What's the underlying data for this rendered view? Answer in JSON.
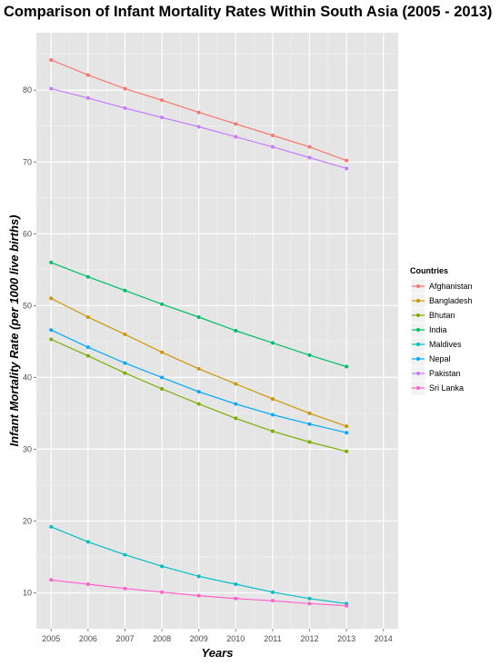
{
  "chart_data": {
    "type": "line",
    "title": "Comparison of Infant Mortality Rates Within South Asia (2005 - 2013)",
    "xlabel": "Years",
    "ylabel": "Infant Mortality Rate (per 1000 live births)",
    "x": [
      2005,
      2006,
      2007,
      2008,
      2009,
      2010,
      2011,
      2012,
      2013
    ],
    "x_ticks": [
      "2005",
      "2006",
      "2007",
      "2008",
      "2009",
      "2010",
      "2011",
      "2012",
      "2013",
      "2014"
    ],
    "y_ticks": [
      "10",
      "20",
      "30",
      "40",
      "50",
      "60",
      "70",
      "80"
    ],
    "xlim": [
      2004.6,
      2014.4
    ],
    "ylim": [
      5,
      88
    ],
    "grid": true,
    "legend": {
      "title": "Countries",
      "position": "right"
    },
    "series": [
      {
        "name": "Afghanistan",
        "color": "#F8766D",
        "values": [
          84.2,
          82.1,
          80.2,
          78.6,
          76.9,
          75.3,
          73.7,
          72.1,
          70.2
        ]
      },
      {
        "name": "Bangladesh",
        "color": "#CD9600",
        "values": [
          51.0,
          48.4,
          46.0,
          43.5,
          41.2,
          39.1,
          37.0,
          35.0,
          33.2
        ]
      },
      {
        "name": "Bhutan",
        "color": "#7CAE00",
        "values": [
          45.3,
          43.0,
          40.6,
          38.4,
          36.3,
          34.3,
          32.5,
          31.0,
          29.7
        ]
      },
      {
        "name": "India",
        "color": "#00BE67",
        "values": [
          56.0,
          54.0,
          52.1,
          50.2,
          48.4,
          46.5,
          44.8,
          43.1,
          41.5
        ]
      },
      {
        "name": "Maldives",
        "color": "#00BFC4",
        "values": [
          19.2,
          17.1,
          15.3,
          13.7,
          12.3,
          11.2,
          10.1,
          9.2,
          8.5
        ]
      },
      {
        "name": "Nepal",
        "color": "#00A9FF",
        "values": [
          46.6,
          44.2,
          42.0,
          40.0,
          38.0,
          36.3,
          34.8,
          33.5,
          32.3
        ]
      },
      {
        "name": "Pakistan",
        "color": "#C77CFF",
        "values": [
          80.2,
          78.9,
          77.5,
          76.2,
          74.9,
          73.5,
          72.1,
          70.6,
          69.1
        ]
      },
      {
        "name": "Sri Lanka",
        "color": "#FF61CC",
        "values": [
          11.8,
          11.2,
          10.6,
          10.1,
          9.6,
          9.2,
          8.9,
          8.5,
          8.2
        ]
      }
    ]
  }
}
